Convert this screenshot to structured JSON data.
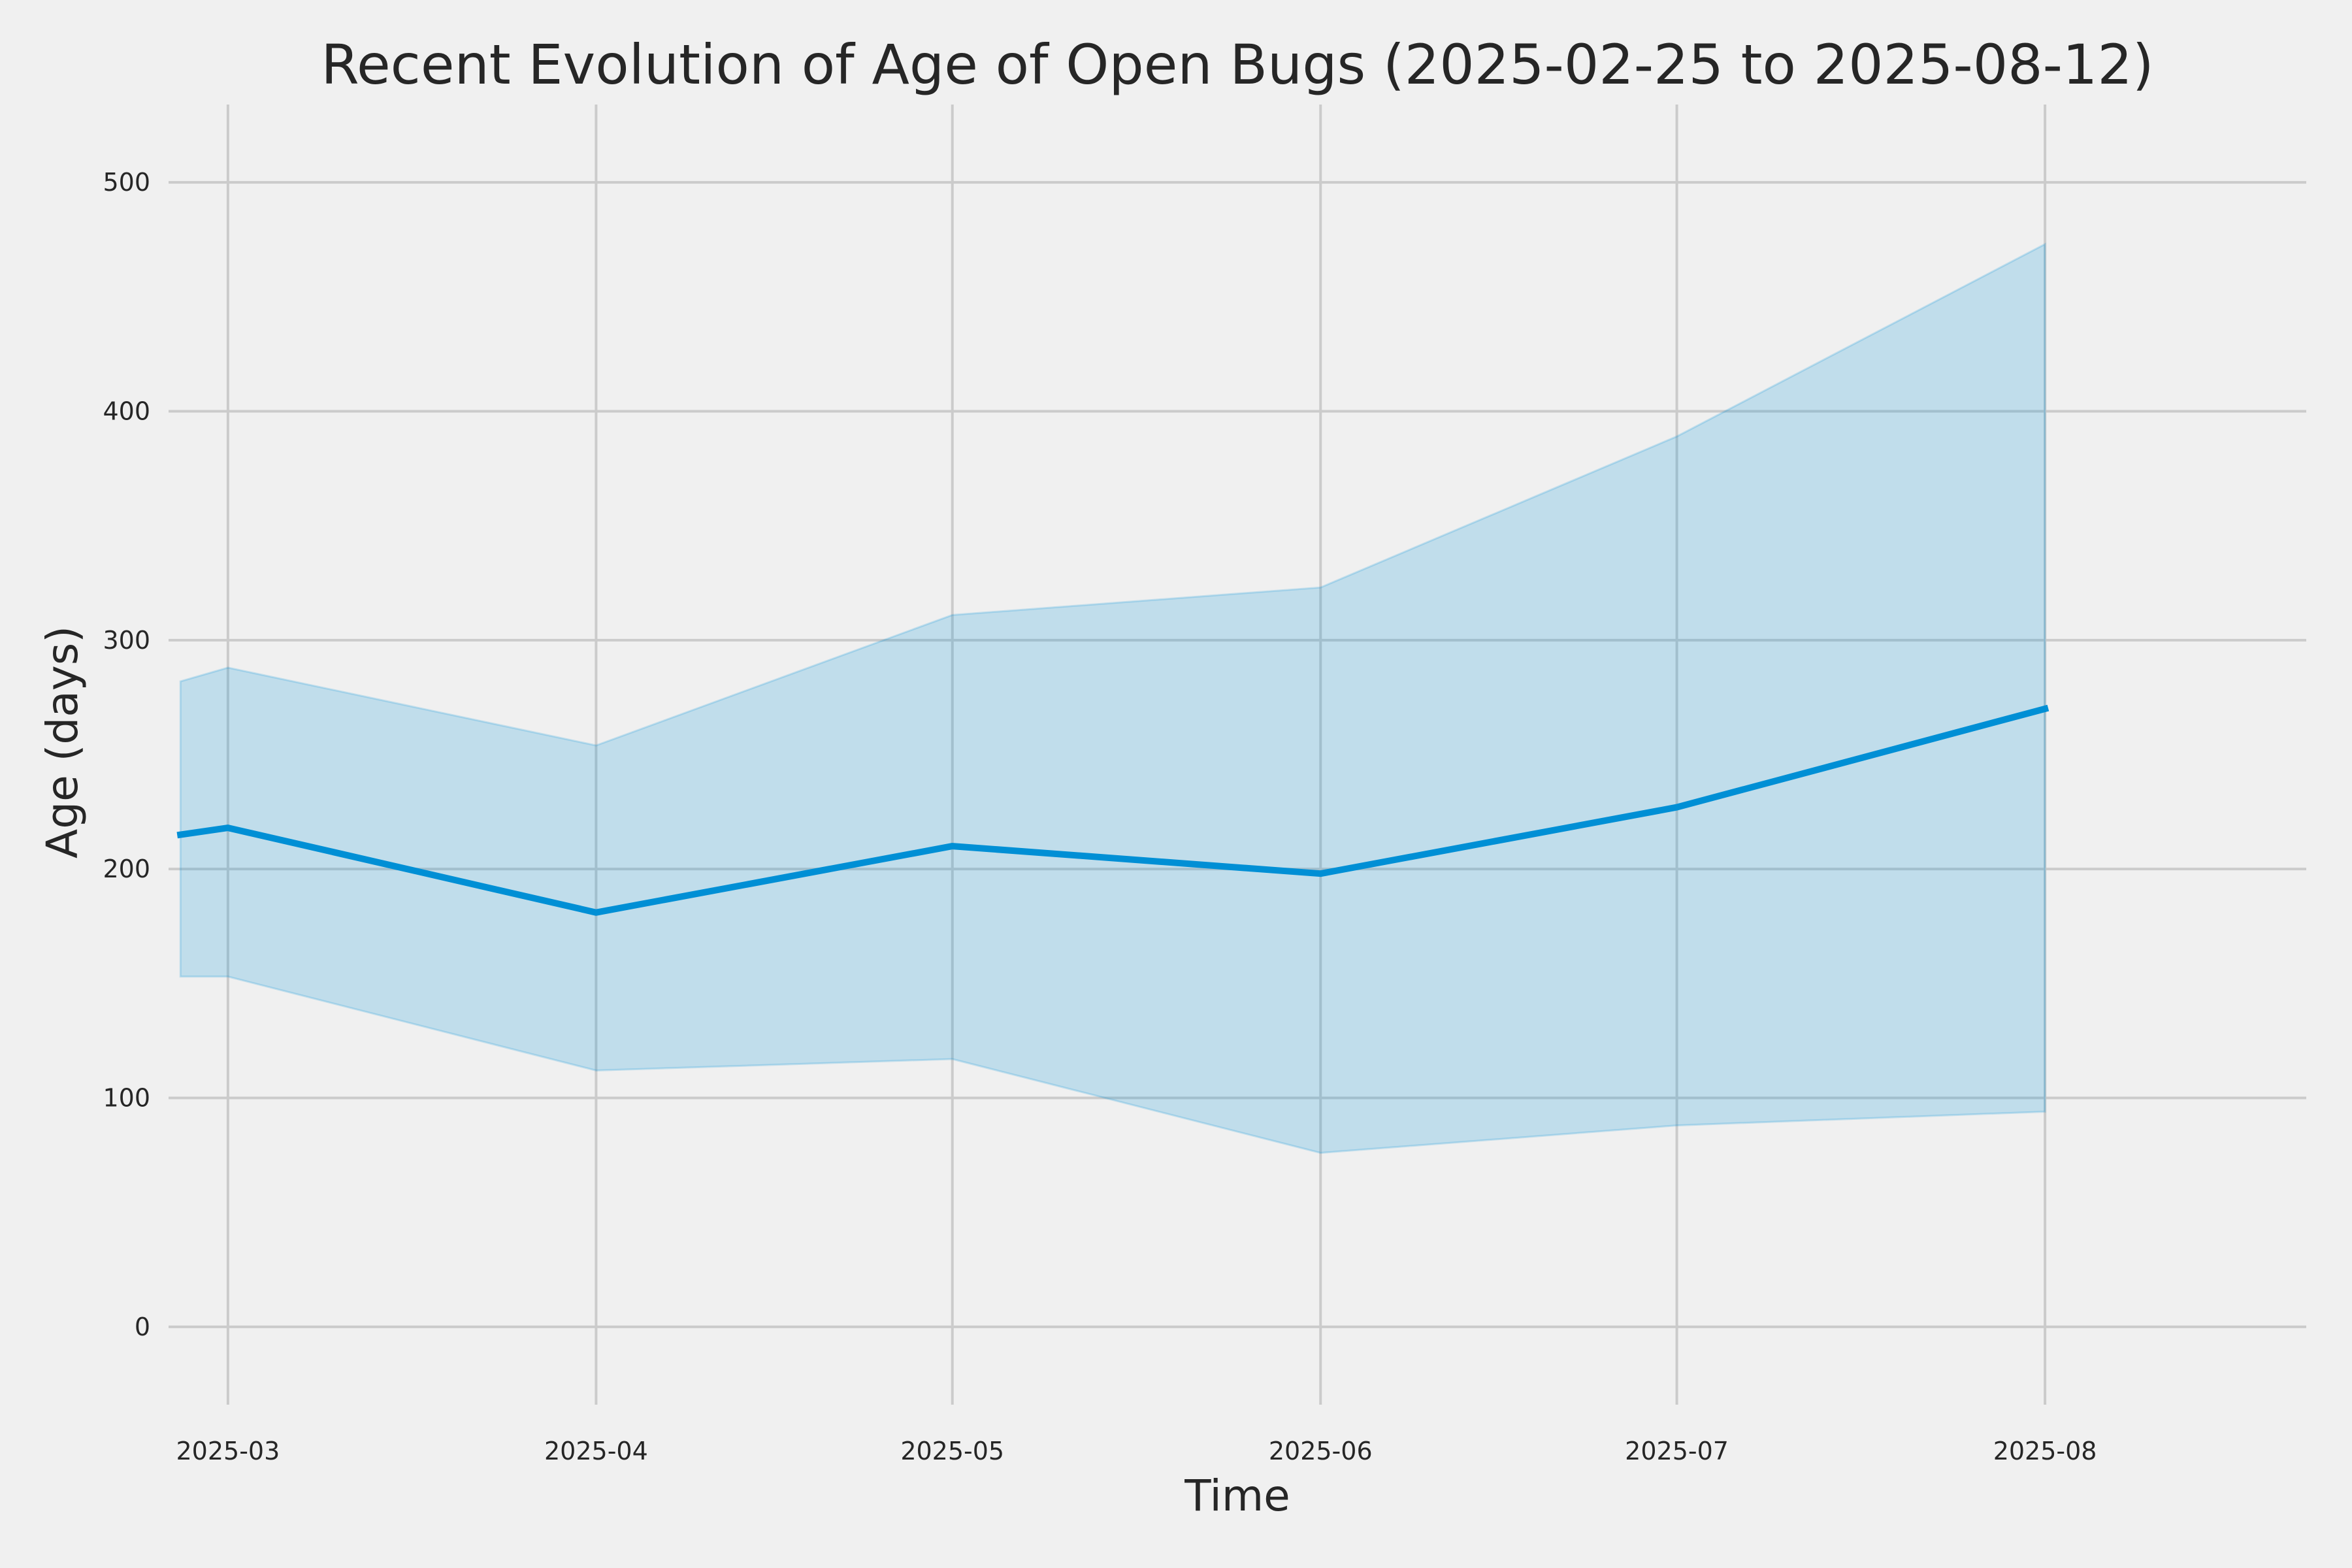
{
  "chart_data": {
    "type": "line",
    "title": "Recent Evolution of Age of Open Bugs (2025-02-25 to 2025-08-12)",
    "xlabel": "Time",
    "ylabel": "Age (days)",
    "ylim": [
      -34,
      534
    ],
    "xlim": [
      "2025-02-24",
      "2025-08-23"
    ],
    "x_ticks": [
      "2025-03-01",
      "2025-04-01",
      "2025-05-01",
      "2025-06-01",
      "2025-07-01",
      "2025-08-01"
    ],
    "x_tick_labels": [
      "2025-03",
      "2025-04",
      "2025-05",
      "2025-06",
      "2025-07",
      "2025-08"
    ],
    "y_ticks": [
      0,
      100,
      200,
      300,
      400,
      500
    ],
    "y_tick_labels": [
      "0",
      "100",
      "200",
      "300",
      "400",
      "500"
    ],
    "grid": true,
    "series": [
      {
        "x": [
          "2025-02-25",
          "2025-03-01",
          "2025-04-01",
          "2025-05-01",
          "2025-06-01",
          "2025-07-01",
          "2025-08-01"
        ],
        "values": [
          215,
          218,
          181,
          210,
          198,
          227,
          270
        ],
        "band_upper": [
          282,
          288,
          254,
          311,
          323,
          389,
          473
        ],
        "band_lower": [
          153,
          153,
          112,
          117,
          76,
          88,
          94
        ],
        "color": "#008fd5"
      }
    ]
  },
  "colors": {
    "background": "#f0f0f0",
    "grid": "#cbcbcb",
    "series": "#008fd5",
    "text": "#262626"
  }
}
